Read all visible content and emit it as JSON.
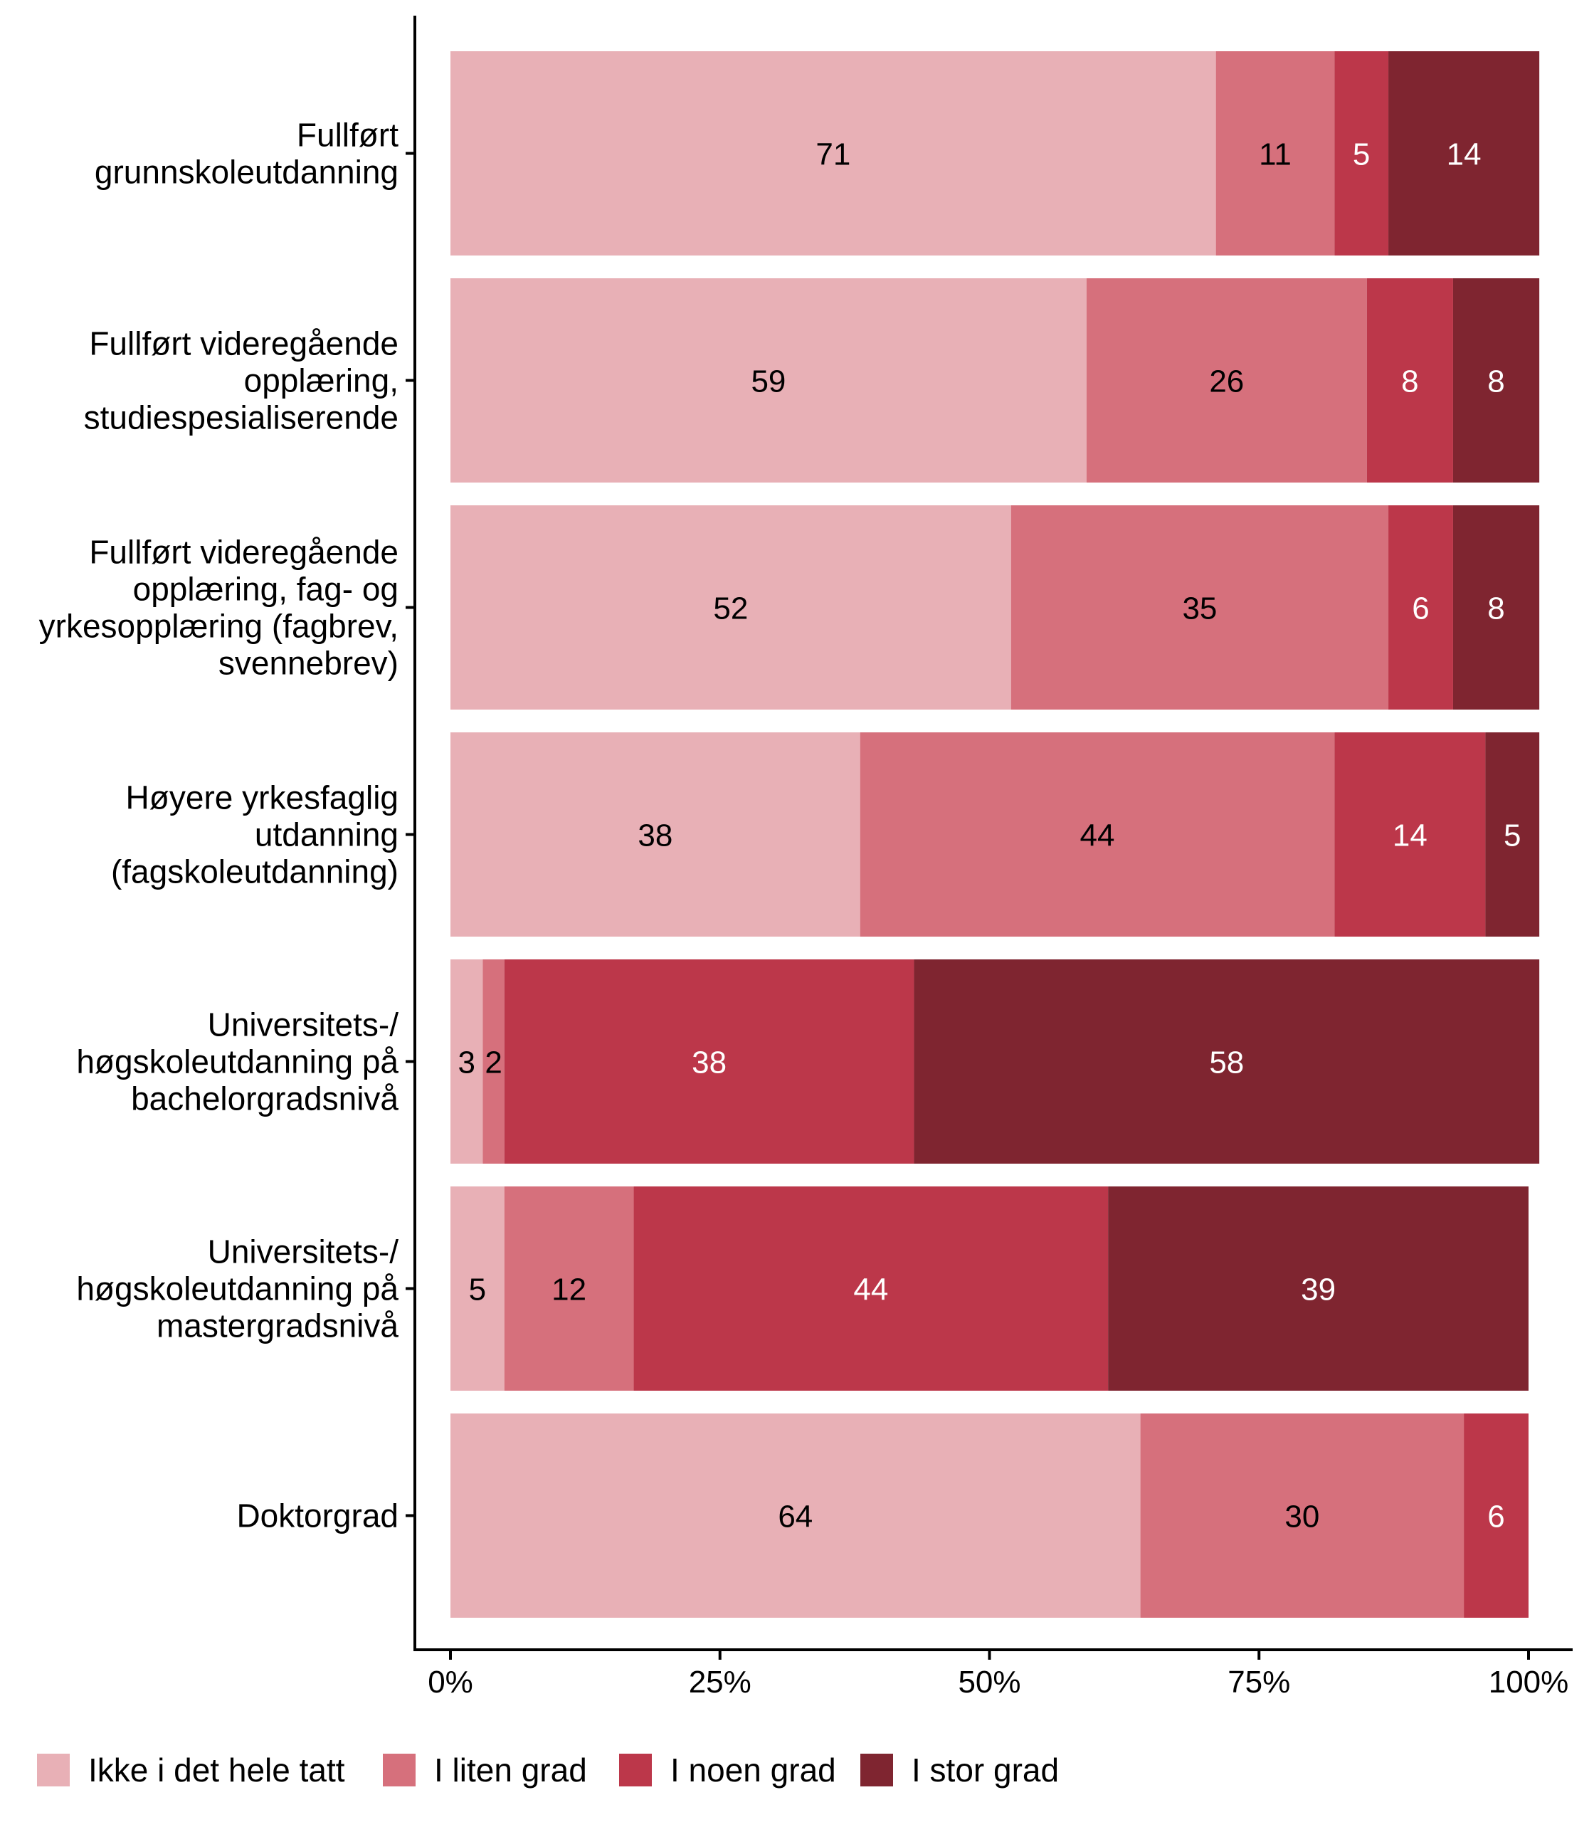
{
  "chart_data": {
    "type": "bar",
    "orientation": "horizontal",
    "stacked": true,
    "title": "",
    "xlabel": "",
    "ylabel": "",
    "xlim": [
      0,
      100
    ],
    "x_ticks": [
      "0%",
      "25%",
      "50%",
      "75%",
      "100%"
    ],
    "x_tick_values": [
      0,
      25,
      50,
      75,
      100
    ],
    "grid": false,
    "legend_position": "bottom",
    "categories": [
      [
        "Fullført",
        "grunnskoleutdanning"
      ],
      [
        "Fullført videregående",
        "opplæring,",
        "studiespesialiserende"
      ],
      [
        "Fullført videregående",
        "opplæring, fag- og",
        "yrkesopplæring (fagbrev,",
        "svennebrev)"
      ],
      [
        "Høyere yrkesfaglig",
        "utdanning",
        "(fagskoleutdanning)"
      ],
      [
        "Universitets-/",
        "høgskoleutdanning på",
        "bachelorgradsnivå"
      ],
      [
        "Universitets-/",
        "høgskoleutdanning på",
        "mastergradsnivå"
      ],
      [
        "Doktorgrad"
      ]
    ],
    "series": [
      {
        "name": "Ikke i det hele tatt",
        "color": "#E8B0B6",
        "label_color": "#000000",
        "values": [
          71,
          59,
          52,
          38,
          3,
          5,
          64
        ]
      },
      {
        "name": "I liten grad",
        "color": "#D6707C",
        "label_color": "#000000",
        "values": [
          11,
          26,
          35,
          44,
          2,
          12,
          30
        ]
      },
      {
        "name": "I noen grad",
        "color": "#BC374A",
        "label_color": "#FFFFFF",
        "values": [
          5,
          8,
          6,
          14,
          38,
          44,
          6
        ]
      },
      {
        "name": "I stor grad",
        "color": "#7F2530",
        "label_color": "#FFFFFF",
        "values": [
          14,
          8,
          8,
          5,
          58,
          39,
          0
        ]
      }
    ]
  }
}
